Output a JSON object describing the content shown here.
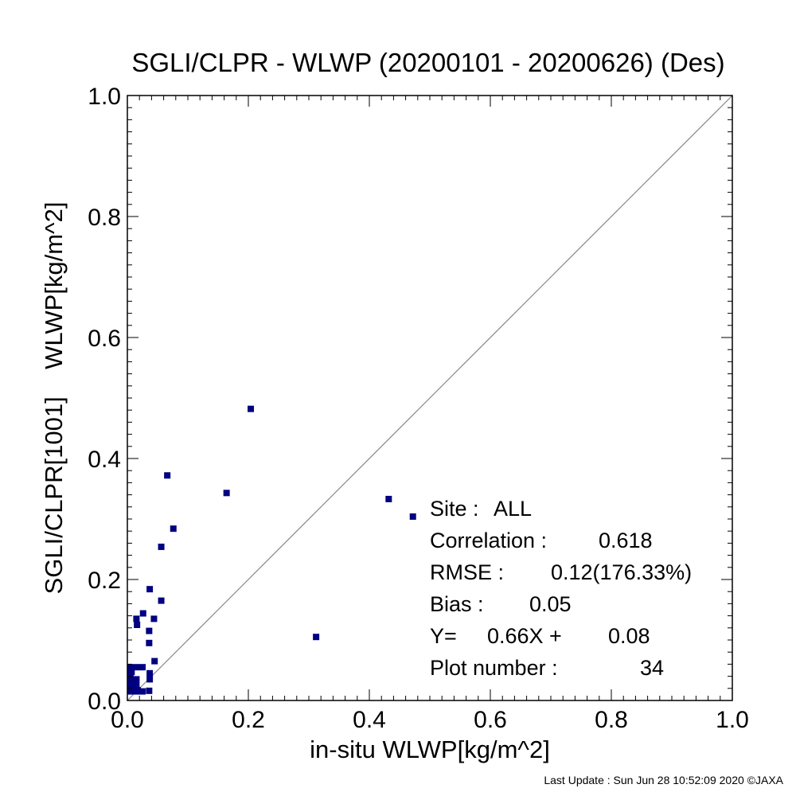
{
  "chart_data": {
    "type": "scatter",
    "title": "SGLI/CLPR - WLWP (20200101 - 20200626) (Des)",
    "xlabel": "in-situ WLWP[kg/m^2]",
    "ylabel": "SGLI/CLPR[1001]    WLWP[kg/m^2]",
    "xlim": [
      0.0,
      1.0
    ],
    "ylim": [
      0.0,
      1.0
    ],
    "xticks": [
      "0.0",
      "0.2",
      "0.4",
      "0.6",
      "0.8",
      "1.0"
    ],
    "yticks": [
      "0.0",
      "0.2",
      "0.4",
      "0.6",
      "0.8",
      "1.0"
    ],
    "grid": false,
    "reference_line": "y = x",
    "point_color": "#000080",
    "points": [
      [
        0.204,
        0.482
      ],
      [
        0.066,
        0.372
      ],
      [
        0.164,
        0.343
      ],
      [
        0.076,
        0.284
      ],
      [
        0.056,
        0.254
      ],
      [
        0.432,
        0.333
      ],
      [
        0.472,
        0.304
      ],
      [
        0.037,
        0.184
      ],
      [
        0.056,
        0.165
      ],
      [
        0.026,
        0.144
      ],
      [
        0.015,
        0.135
      ],
      [
        0.016,
        0.125
      ],
      [
        0.044,
        0.135
      ],
      [
        0.036,
        0.115
      ],
      [
        0.036,
        0.095
      ],
      [
        0.312,
        0.105
      ],
      [
        0.045,
        0.065
      ],
      [
        0.005,
        0.055
      ],
      [
        0.015,
        0.055
      ],
      [
        0.025,
        0.055
      ],
      [
        0.005,
        0.045
      ],
      [
        0.005,
        0.035
      ],
      [
        0.015,
        0.035
      ],
      [
        0.037,
        0.045
      ],
      [
        0.005,
        0.025
      ],
      [
        0.015,
        0.025
      ],
      [
        0.037,
        0.035
      ],
      [
        0.005,
        0.015
      ],
      [
        0.015,
        0.015
      ],
      [
        0.025,
        0.015
      ],
      [
        0.036,
        0.016
      ],
      [
        0.007,
        0.047
      ],
      [
        0.007,
        0.027
      ],
      [
        0.017,
        0.017
      ]
    ],
    "stats": [
      {
        "label": "Site :",
        "value": "ALL"
      },
      {
        "label": "Correlation :",
        "value": "0.618"
      },
      {
        "label": "RMSE :",
        "value": "0.12(176.33%)"
      },
      {
        "label": "Bias :",
        "value": "0.05"
      },
      {
        "label": "Y=",
        "value": "0.66X +",
        "value2": "0.08"
      },
      {
        "label": "Plot number :",
        "value": "34"
      }
    ]
  },
  "footer": "Last Update : Sun Jun 28 10:52:09 2020  ©JAXA"
}
